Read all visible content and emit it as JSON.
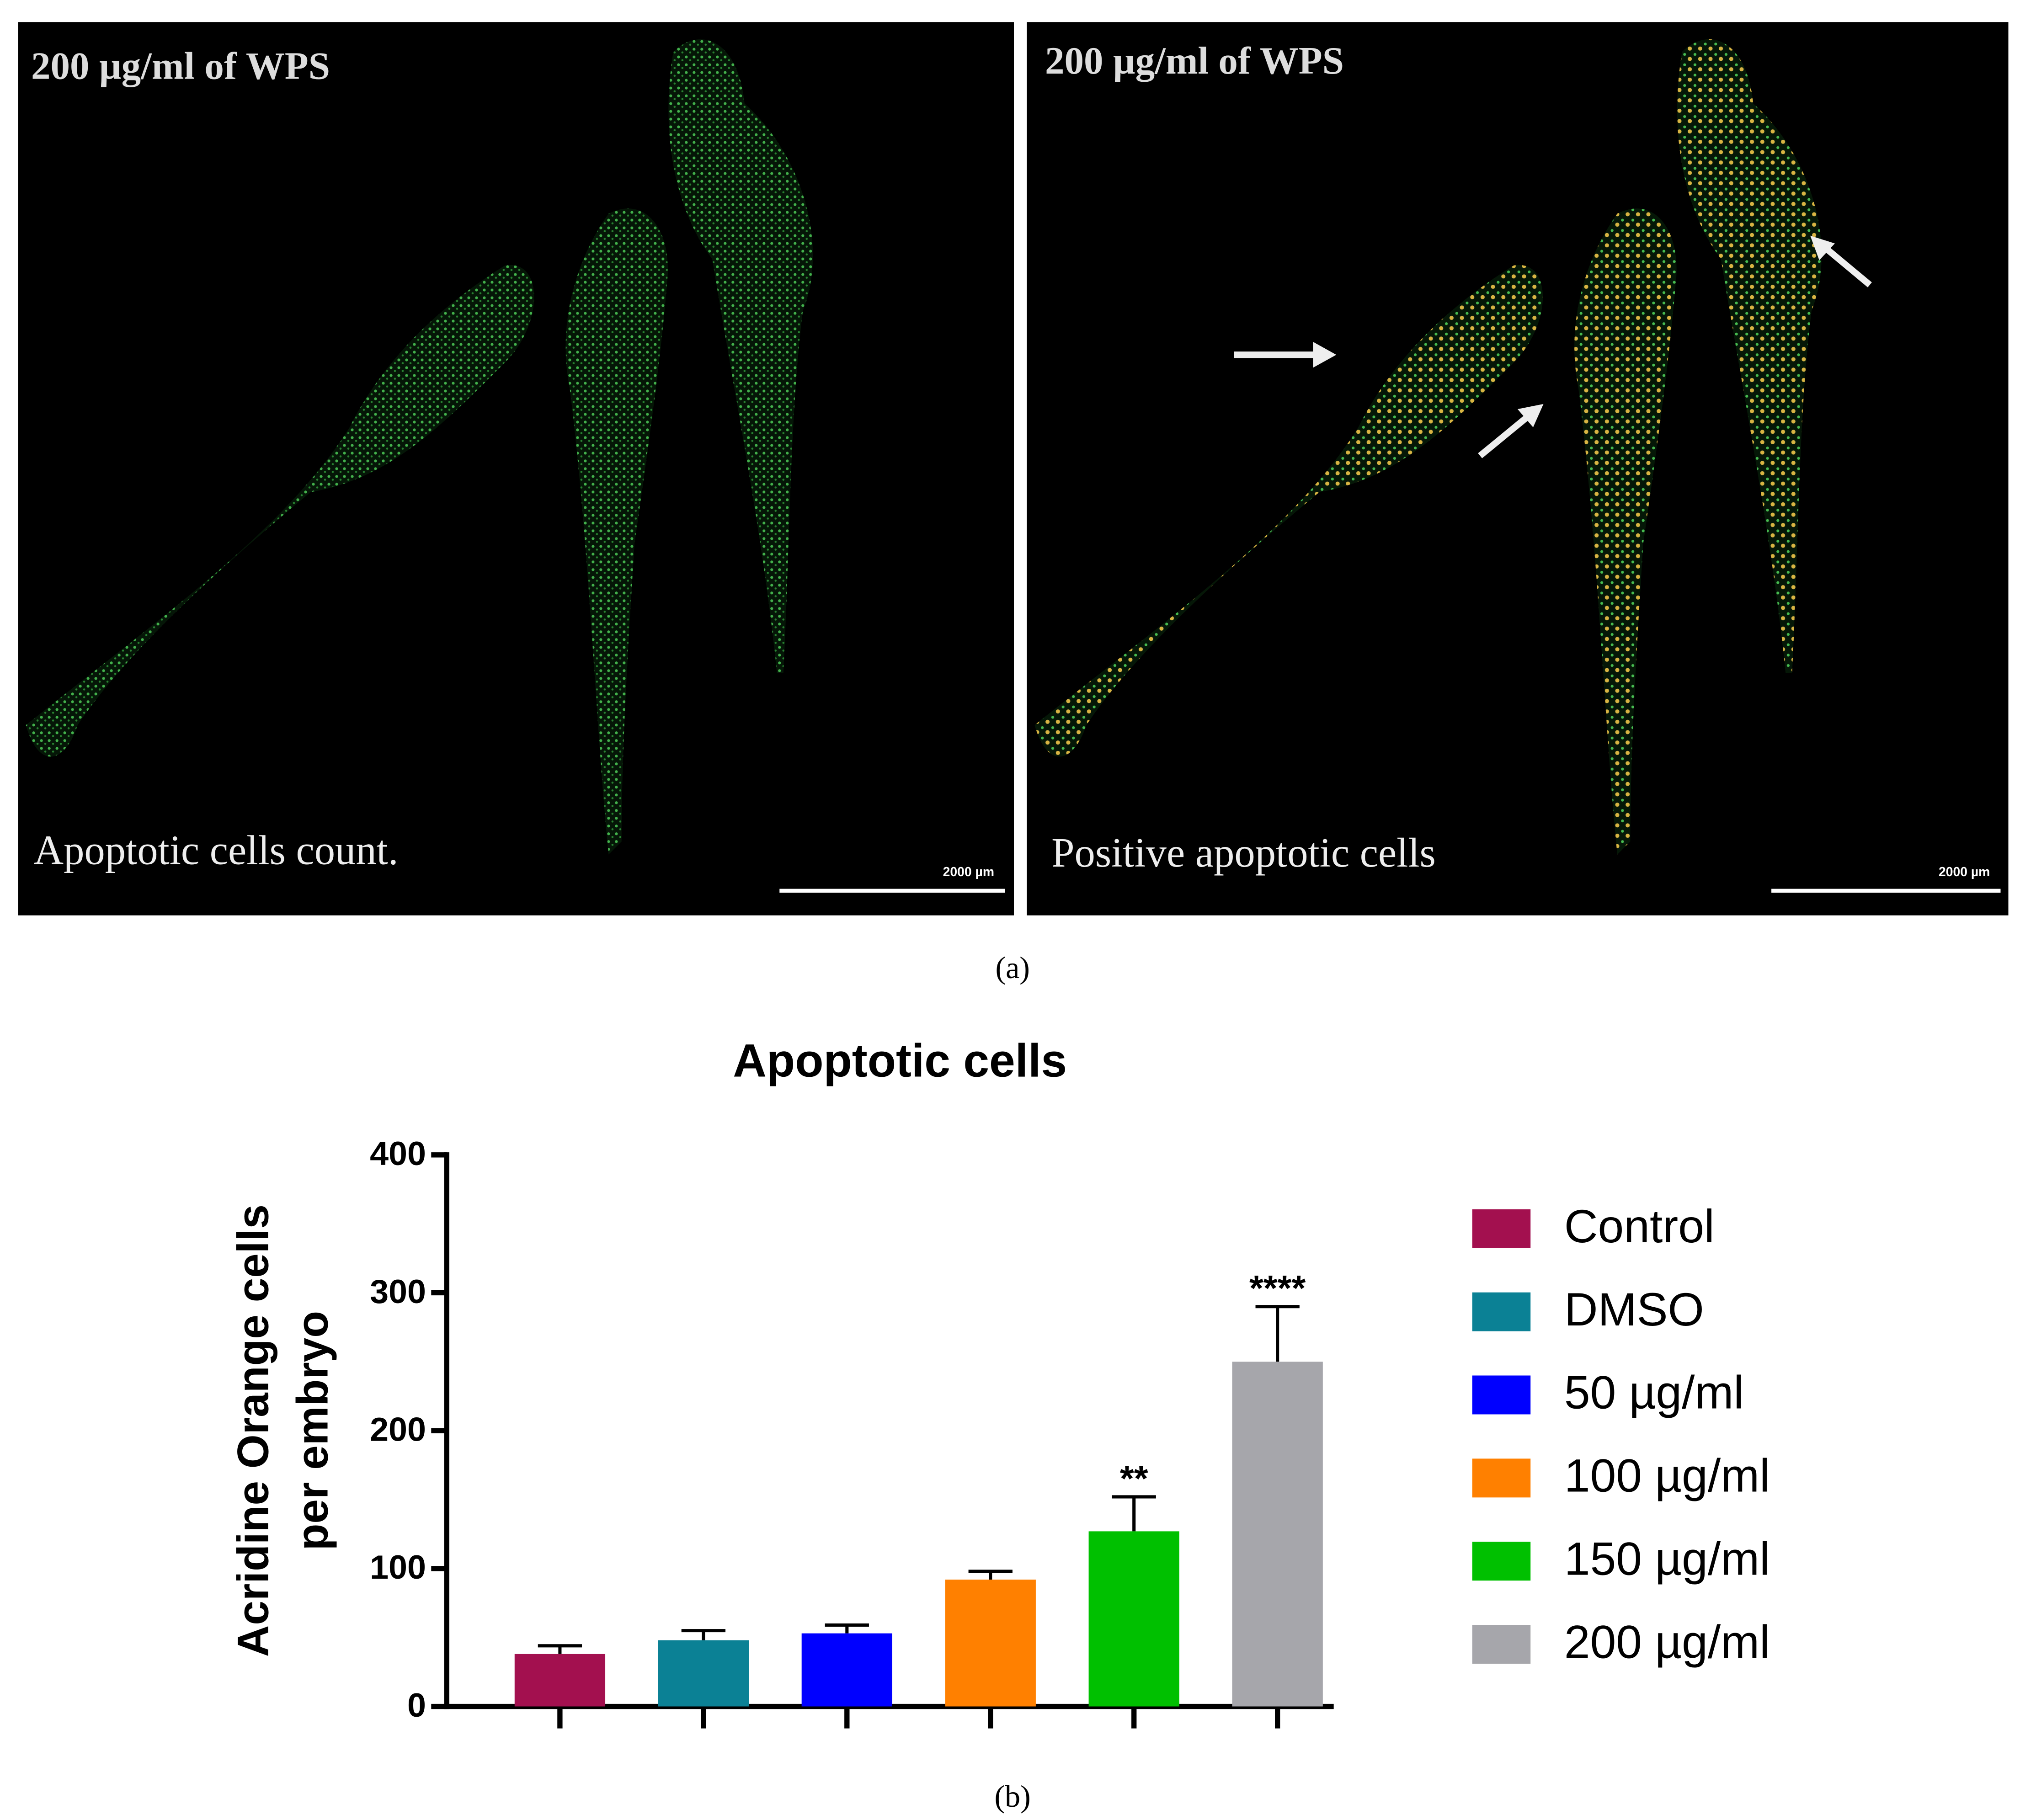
{
  "panel_a": {
    "left": {
      "title": "200 µg/ml of WPS",
      "caption": "Apoptotic cells count.",
      "scale": "2000 µm"
    },
    "right": {
      "title": "200 µg/ml of WPS",
      "caption": "Positive apoptotic cells",
      "scale": "2000 µm"
    },
    "label": "(a)"
  },
  "chart_data": {
    "type": "bar",
    "title": "Apoptotic cells",
    "ylabel": [
      "Acridine Orange cells",
      "per embryo"
    ],
    "categories": [
      "Control",
      "DMSO",
      "50 µg/ml",
      "100 µg/ml",
      "150 µg/ml",
      "200 µg/ml"
    ],
    "values": [
      38,
      48,
      53,
      92,
      127,
      250
    ],
    "errors": [
      6,
      7,
      6,
      6,
      25,
      40
    ],
    "significance": [
      null,
      null,
      null,
      null,
      "**",
      "****"
    ],
    "colors": [
      "#a3104f",
      "#0b8195",
      "#0000ff",
      "#ff8000",
      "#00c000",
      "#a6a6ab"
    ],
    "ylim": [
      0,
      400
    ],
    "yticks": [
      0,
      100,
      200,
      300,
      400
    ],
    "legend": "right",
    "grid": false,
    "panel_label": "(b)"
  }
}
